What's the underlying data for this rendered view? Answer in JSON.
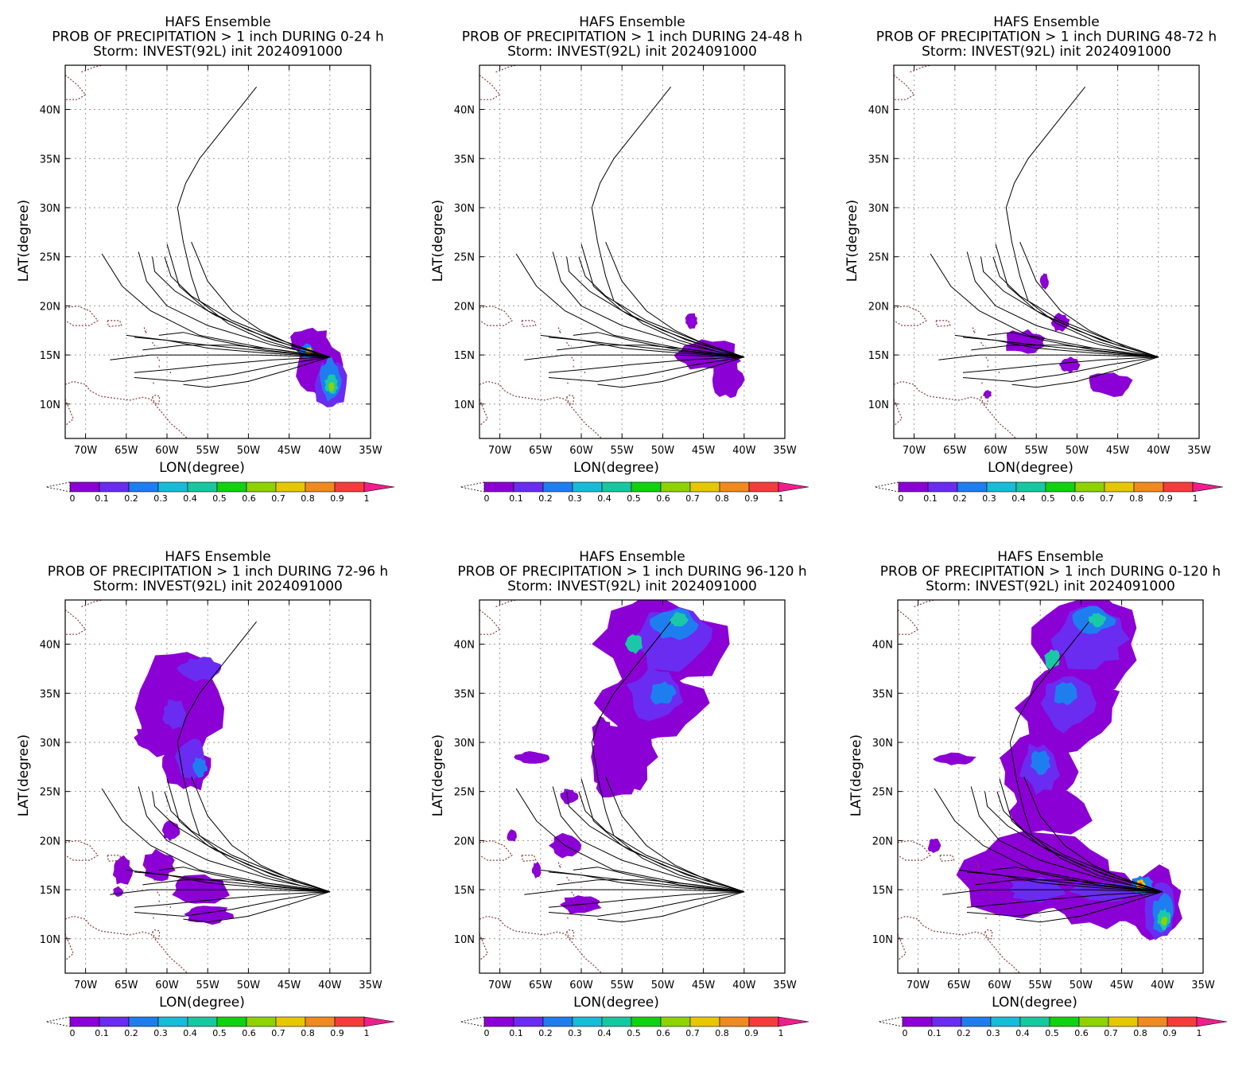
{
  "figure": {
    "panels": [
      {
        "title_line1": "HAFS Ensemble",
        "title_line2": "PROB OF PRECIPITATION > 1 inch DURING  0-24 h",
        "title_line3": "Storm: INVEST(92L) init 2024091000",
        "xlabel": "LON(degree)",
        "ylabel": "LAT(degree)",
        "blobs": [
          {
            "lon": -41.5,
            "lat": 14.0,
            "rlon": 2.8,
            "rlat": 3.4,
            "c": "#8b00d4"
          },
          {
            "lon": -42.5,
            "lat": 16.3,
            "rlon": 2.4,
            "rlat": 1.6,
            "c": "#8b00d4"
          },
          {
            "lon": -40.0,
            "lat": 12.0,
            "rlon": 2.0,
            "rlat": 2.5,
            "c": "#6a2cf0"
          },
          {
            "lon": -40.0,
            "lat": 12.5,
            "rlon": 1.3,
            "rlat": 2.0,
            "c": "#1e7ef0"
          },
          {
            "lon": -39.8,
            "lat": 12.0,
            "rlon": 0.8,
            "rlat": 1.0,
            "c": "#1ac8a8"
          },
          {
            "lon": -39.8,
            "lat": 11.8,
            "rlon": 0.4,
            "rlat": 0.5,
            "c": "#8ed200"
          },
          {
            "lon": -42.8,
            "lat": 15.3,
            "rlon": 0.9,
            "rlat": 0.8,
            "c": "#1e7ef0"
          },
          {
            "lon": -42.6,
            "lat": 15.4,
            "rlon": 0.4,
            "rlat": 0.4,
            "c": "#e6c800"
          }
        ]
      },
      {
        "title_line1": "HAFS Ensemble",
        "title_line2": "PROB OF PRECIPITATION > 1 inch DURING 24-48 h",
        "title_line3": "Storm: INVEST(92L) init 2024091000",
        "xlabel": "LON(degree)",
        "ylabel": "LAT(degree)",
        "blobs": [
          {
            "lon": -44.5,
            "lat": 15.0,
            "rlon": 4.0,
            "rlat": 1.6,
            "c": "#8b00d4"
          },
          {
            "lon": -42.0,
            "lat": 12.5,
            "rlon": 2.0,
            "rlat": 2.0,
            "c": "#8b00d4"
          },
          {
            "lon": -46.5,
            "lat": 18.5,
            "rlon": 0.8,
            "rlat": 0.8,
            "c": "#8b00d4"
          },
          {
            "lon": -43.0,
            "lat": 15.0,
            "rlon": 1.0,
            "rlat": 0.6,
            "c": "#6a2cf0"
          }
        ]
      },
      {
        "title_line1": "HAFS Ensemble",
        "title_line2": "PROB OF PRECIPITATION > 1 inch DURING 48-72 h",
        "title_line3": "Storm: INVEST(92L) init 2024091000",
        "xlabel": "LON(degree)",
        "ylabel": "LAT(degree)",
        "blobs": [
          {
            "lon": -56.5,
            "lat": 16.3,
            "rlon": 2.5,
            "rlat": 1.2,
            "c": "#8b00d4"
          },
          {
            "lon": -52.0,
            "lat": 18.3,
            "rlon": 1.2,
            "rlat": 0.9,
            "c": "#8b00d4"
          },
          {
            "lon": -54.0,
            "lat": 22.5,
            "rlon": 0.5,
            "rlat": 0.8,
            "c": "#8b00d4"
          },
          {
            "lon": -46.0,
            "lat": 12.0,
            "rlon": 2.8,
            "rlat": 1.2,
            "c": "#8b00d4"
          },
          {
            "lon": -51.0,
            "lat": 14.0,
            "rlon": 1.3,
            "rlat": 0.8,
            "c": "#8b00d4"
          },
          {
            "lon": -61.0,
            "lat": 11.0,
            "rlon": 0.5,
            "rlat": 0.4,
            "c": "#8b00d4"
          }
        ]
      },
      {
        "title_line1": "HAFS Ensemble",
        "title_line2": "PROB OF PRECIPITATION > 1 inch DURING 72-96 h",
        "title_line3": "Storm: INVEST(92L) init 2024091000",
        "xlabel": "LON(degree)",
        "ylabel": "LAT(degree)",
        "blobs": [
          {
            "lon": -58.5,
            "lat": 33.5,
            "rlon": 5.5,
            "rlat": 5.8,
            "c": "#8b00d4"
          },
          {
            "lon": -57.5,
            "lat": 27.5,
            "rlon": 3.0,
            "rlat": 2.5,
            "c": "#8b00d4"
          },
          {
            "lon": -62.0,
            "lat": 30.5,
            "rlon": 2.0,
            "rlat": 1.2,
            "c": "#8b00d4"
          },
          {
            "lon": -57.0,
            "lat": 28.5,
            "rlon": 2.0,
            "rlat": 2.0,
            "c": "#6a2cf0"
          },
          {
            "lon": -56.0,
            "lat": 27.5,
            "rlon": 0.9,
            "rlat": 1.0,
            "c": "#1e7ef0"
          },
          {
            "lon": -59.0,
            "lat": 33.0,
            "rlon": 1.5,
            "rlat": 1.5,
            "c": "#6a2cf0"
          },
          {
            "lon": -56.0,
            "lat": 37.5,
            "rlon": 2.5,
            "rlat": 1.2,
            "c": "#6a2cf0"
          },
          {
            "lon": -61.0,
            "lat": 17.5,
            "rlon": 2.0,
            "rlat": 1.5,
            "c": "#8b00d4"
          },
          {
            "lon": -56.0,
            "lat": 15.0,
            "rlon": 3.5,
            "rlat": 1.5,
            "c": "#8b00d4"
          },
          {
            "lon": -55.0,
            "lat": 12.5,
            "rlon": 3.0,
            "rlat": 1.0,
            "c": "#8b00d4"
          },
          {
            "lon": -59.5,
            "lat": 21.0,
            "rlon": 1.0,
            "rlat": 1.0,
            "c": "#8b00d4"
          },
          {
            "lon": -65.5,
            "lat": 17.0,
            "rlon": 1.2,
            "rlat": 1.5,
            "c": "#8b00d4"
          },
          {
            "lon": -66.0,
            "lat": 14.8,
            "rlon": 0.6,
            "rlat": 0.5,
            "c": "#8b00d4"
          }
        ]
      },
      {
        "title_line1": "HAFS Ensemble",
        "title_line2": "PROB OF PRECIPITATION > 1 inch DURING 96-120 h",
        "title_line3": "Storm: INVEST(92L) init 2024091000",
        "xlabel": "LON(degree)",
        "ylabel": "LAT(degree)",
        "blobs": [
          {
            "lon": -50.0,
            "lat": 40.0,
            "rlon": 7.5,
            "rlat": 4.8,
            "c": "#8b00d4"
          },
          {
            "lon": -51.5,
            "lat": 34.0,
            "rlon": 6.5,
            "rlat": 4.0,
            "c": "#8b00d4"
          },
          {
            "lon": -55.0,
            "lat": 28.5,
            "rlon": 4.0,
            "rlat": 3.5,
            "c": "#8b00d4"
          },
          {
            "lon": -56.0,
            "lat": 25.8,
            "rlon": 2.5,
            "rlat": 1.5,
            "c": "#8b00d4"
          },
          {
            "lon": -49.0,
            "lat": 40.5,
            "rlon": 5.0,
            "rlat": 3.0,
            "c": "#6a2cf0"
          },
          {
            "lon": -51.0,
            "lat": 35.0,
            "rlon": 3.5,
            "rlat": 2.5,
            "c": "#6a2cf0"
          },
          {
            "lon": -50.0,
            "lat": 35.0,
            "rlon": 1.5,
            "rlat": 1.2,
            "c": "#1e7ef0"
          },
          {
            "lon": -48.5,
            "lat": 42.0,
            "rlon": 3.0,
            "rlat": 1.5,
            "c": "#1e7ef0"
          },
          {
            "lon": -48.0,
            "lat": 42.5,
            "rlon": 1.0,
            "rlat": 0.8,
            "c": "#1ac8a8"
          },
          {
            "lon": -53.5,
            "lat": 40.0,
            "rlon": 1.0,
            "rlat": 1.0,
            "c": "#1ac8a8"
          },
          {
            "lon": -66.0,
            "lat": 28.5,
            "rlon": 2.0,
            "rlat": 0.6,
            "c": "#8b00d4"
          },
          {
            "lon": -62.0,
            "lat": 19.5,
            "rlon": 1.8,
            "rlat": 1.3,
            "c": "#8b00d4"
          },
          {
            "lon": -60.0,
            "lat": 13.5,
            "rlon": 2.5,
            "rlat": 1.0,
            "c": "#8b00d4"
          },
          {
            "lon": -65.5,
            "lat": 17.0,
            "rlon": 0.6,
            "rlat": 0.8,
            "c": "#8b00d4"
          },
          {
            "lon": -68.5,
            "lat": 20.5,
            "rlon": 0.7,
            "rlat": 0.6,
            "c": "#8b00d4"
          },
          {
            "lon": -61.5,
            "lat": 24.5,
            "rlon": 1.0,
            "rlat": 0.8,
            "c": "#8b00d4"
          },
          {
            "lon": -57.5,
            "lat": 31.0,
            "rlon": 1.2,
            "rlat": 1.5,
            "c": "#8b00d4"
          }
        ]
      },
      {
        "title_line1": "HAFS Ensemble",
        "title_line2": "PROB OF PRECIPITATION > 1 inch DURING 0-120 h",
        "title_line3": "Storm: INVEST(92L) init 2024091000",
        "xlabel": "LON(degree)",
        "ylabel": "LAT(degree)",
        "blobs": [
          {
            "lon": -49.5,
            "lat": 40.0,
            "rlon": 7.0,
            "rlat": 5.0,
            "c": "#8b00d4"
          },
          {
            "lon": -51.5,
            "lat": 33.5,
            "rlon": 6.0,
            "rlat": 4.5,
            "c": "#8b00d4"
          },
          {
            "lon": -55.0,
            "lat": 27.0,
            "rlon": 5.0,
            "rlat": 4.0,
            "c": "#8b00d4"
          },
          {
            "lon": -54.0,
            "lat": 23.0,
            "rlon": 5.0,
            "rlat": 2.5,
            "c": "#8b00d4"
          },
          {
            "lon": -55.5,
            "lat": 16.5,
            "rlon": 9.5,
            "rlat": 4.5,
            "c": "#8b00d4"
          },
          {
            "lon": -48.0,
            "lat": 14.0,
            "rlon": 6.5,
            "rlat": 3.0,
            "c": "#8b00d4"
          },
          {
            "lon": -41.0,
            "lat": 13.5,
            "rlon": 3.5,
            "rlat": 4.0,
            "c": "#8b00d4"
          },
          {
            "lon": -49.0,
            "lat": 40.5,
            "rlon": 4.5,
            "rlat": 3.0,
            "c": "#6a2cf0"
          },
          {
            "lon": -51.5,
            "lat": 34.0,
            "rlon": 3.5,
            "rlat": 2.8,
            "c": "#6a2cf0"
          },
          {
            "lon": -55.0,
            "lat": 27.5,
            "rlon": 2.5,
            "rlat": 2.5,
            "c": "#6a2cf0"
          },
          {
            "lon": -52.0,
            "lat": 35.0,
            "rlon": 1.5,
            "rlat": 1.2,
            "c": "#1e7ef0"
          },
          {
            "lon": -48.5,
            "lat": 42.5,
            "rlon": 2.5,
            "rlat": 1.3,
            "c": "#1e7ef0"
          },
          {
            "lon": -55.0,
            "lat": 28.0,
            "rlon": 1.2,
            "rlat": 1.2,
            "c": "#1e7ef0"
          },
          {
            "lon": -55.5,
            "lat": 15.0,
            "rlon": 3.5,
            "rlat": 1.2,
            "c": "#6a2cf0"
          },
          {
            "lon": -47.0,
            "lat": 14.8,
            "rlon": 4.0,
            "rlat": 1.0,
            "c": "#6a2cf0"
          },
          {
            "lon": -40.5,
            "lat": 13.0,
            "rlon": 2.0,
            "rlat": 2.8,
            "c": "#6a2cf0"
          },
          {
            "lon": -40.0,
            "lat": 12.5,
            "rlon": 1.3,
            "rlat": 2.0,
            "c": "#1e7ef0"
          },
          {
            "lon": -39.8,
            "lat": 12.0,
            "rlon": 0.8,
            "rlat": 1.0,
            "c": "#1ac8a8"
          },
          {
            "lon": -39.8,
            "lat": 11.8,
            "rlon": 0.4,
            "rlat": 0.5,
            "c": "#8ed200"
          },
          {
            "lon": -42.5,
            "lat": 15.5,
            "rlon": 1.4,
            "rlat": 0.9,
            "c": "#1e7ef0"
          },
          {
            "lon": -42.7,
            "lat": 15.5,
            "rlon": 0.6,
            "rlat": 0.5,
            "c": "#e6c800"
          },
          {
            "lon": -42.7,
            "lat": 15.5,
            "rlon": 0.25,
            "rlat": 0.25,
            "c": "#ff3a3a"
          },
          {
            "lon": -48.0,
            "lat": 42.5,
            "rlon": 1.0,
            "rlat": 0.7,
            "c": "#1ac8a8"
          },
          {
            "lon": -53.5,
            "lat": 38.5,
            "rlon": 1.0,
            "rlat": 1.0,
            "c": "#1ac8a8"
          },
          {
            "lon": -65.5,
            "lat": 28.3,
            "rlon": 2.5,
            "rlat": 0.6,
            "c": "#8b00d4"
          },
          {
            "lon": -68.0,
            "lat": 19.5,
            "rlon": 0.8,
            "rlat": 0.8,
            "c": "#8b00d4"
          }
        ]
      }
    ],
    "tracks": [
      [
        [
          -40.0,
          14.8
        ],
        [
          -43.5,
          15.4
        ],
        [
          -48.0,
          16.5
        ],
        [
          -52.5,
          18.2
        ],
        [
          -56.0,
          20.5
        ],
        [
          -57.0,
          23.0
        ],
        [
          -58.0,
          26.5
        ],
        [
          -58.7,
          30.0
        ],
        [
          -57.7,
          32.5
        ],
        [
          -56.0,
          35.0
        ],
        [
          -49.0,
          42.3
        ]
      ],
      [
        [
          -40.0,
          14.8
        ],
        [
          -44.0,
          15.8
        ],
        [
          -48.5,
          17.5
        ],
        [
          -52.0,
          19.5
        ],
        [
          -55.0,
          22.5
        ],
        [
          -57.0,
          26.5
        ]
      ],
      [
        [
          -40.0,
          14.8
        ],
        [
          -45.0,
          16.0
        ],
        [
          -50.0,
          17.5
        ],
        [
          -55.0,
          19.5
        ],
        [
          -58.5,
          22.0
        ],
        [
          -60.0,
          26.3
        ]
      ],
      [
        [
          -40.0,
          14.8
        ],
        [
          -46.0,
          16.5
        ],
        [
          -52.0,
          18.5
        ],
        [
          -57.0,
          21.0
        ],
        [
          -59.5,
          23.0
        ],
        [
          -60.3,
          25.0
        ]
      ],
      [
        [
          -40.0,
          14.8
        ],
        [
          -47.0,
          16.5
        ],
        [
          -54.0,
          19.0
        ],
        [
          -59.0,
          21.5
        ],
        [
          -61.5,
          23.5
        ],
        [
          -61.8,
          25.0
        ]
      ],
      [
        [
          -40.0,
          14.8
        ],
        [
          -47.0,
          16.0
        ],
        [
          -55.0,
          18.0
        ],
        [
          -60.0,
          20.0
        ],
        [
          -62.5,
          22.5
        ],
        [
          -63.5,
          25.5
        ]
      ],
      [
        [
          -40.0,
          14.8
        ],
        [
          -48.0,
          15.7
        ],
        [
          -56.0,
          17.0
        ],
        [
          -62.0,
          19.5
        ],
        [
          -65.5,
          22.0
        ],
        [
          -68.0,
          25.3
        ]
      ],
      [
        [
          -40.0,
          14.8
        ],
        [
          -48.0,
          15.4
        ],
        [
          -55.0,
          16.0
        ],
        [
          -60.0,
          16.5
        ],
        [
          -65.0,
          17.0
        ]
      ],
      [
        [
          -40.0,
          14.8
        ],
        [
          -48.0,
          15.2
        ],
        [
          -55.0,
          15.7
        ],
        [
          -60.0,
          16.5
        ],
        [
          -64.0,
          16.8
        ]
      ],
      [
        [
          -40.0,
          14.8
        ],
        [
          -49.0,
          15.0
        ],
        [
          -57.0,
          15.0
        ],
        [
          -62.0,
          15.0
        ],
        [
          -67.0,
          14.5
        ]
      ],
      [
        [
          -40.0,
          14.8
        ],
        [
          -47.0,
          14.5
        ],
        [
          -54.0,
          14.0
        ],
        [
          -60.0,
          13.5
        ],
        [
          -64.0,
          13.2
        ]
      ],
      [
        [
          -40.0,
          14.8
        ],
        [
          -46.0,
          14.0
        ],
        [
          -52.0,
          13.0
        ],
        [
          -58.0,
          12.3
        ],
        [
          -64.0,
          12.7
        ]
      ],
      [
        [
          -40.0,
          14.8
        ],
        [
          -45.0,
          13.5
        ],
        [
          -50.0,
          12.3
        ],
        [
          -55.0,
          11.7
        ],
        [
          -58.0,
          12.0
        ]
      ],
      [
        [
          -40.0,
          14.8
        ],
        [
          -48.0,
          15.5
        ],
        [
          -54.0,
          16.5
        ],
        [
          -58.0,
          17.3
        ],
        [
          -61.0,
          17.0
        ]
      ],
      [
        [
          -40.0,
          14.8
        ],
        [
          -46.0,
          15.5
        ],
        [
          -52.0,
          16.0
        ],
        [
          -58.0,
          16.0
        ],
        [
          -63.0,
          15.5
        ]
      ]
    ],
    "x_ticks": [
      "70W",
      "65W",
      "60W",
      "55W",
      "50W",
      "45W",
      "40W",
      "35W"
    ],
    "y_ticks": [
      "10N",
      "15N",
      "20N",
      "25N",
      "30N",
      "35N",
      "40N"
    ],
    "colorbar": {
      "labels": [
        "0",
        "0.1",
        "0.2",
        "0.3",
        "0.4",
        "0.5",
        "0.6",
        "0.7",
        "0.8",
        "0.9",
        "1"
      ],
      "colors": [
        "#8b00d4",
        "#6a2cf0",
        "#1e7ef0",
        "#16bcd8",
        "#16c8a0",
        "#10d210",
        "#8ed200",
        "#e6c800",
        "#f08a20",
        "#f53c3c",
        "#f01e8c"
      ]
    },
    "colors": {
      "grid": "#9a9a9a",
      "coast": "#8b3a3a",
      "track": "#000000"
    }
  }
}
